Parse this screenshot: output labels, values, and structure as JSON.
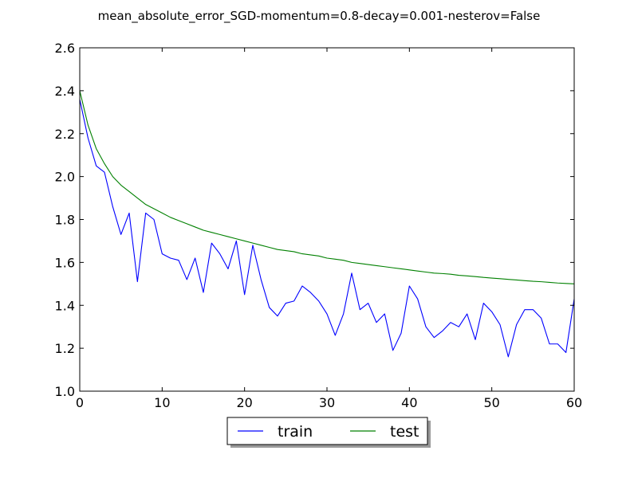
{
  "chart_data": {
    "type": "line",
    "title": "mean_absolute_error_SGD-momentum=0.8-decay=0.001-nesterov=False",
    "xlabel": "",
    "ylabel": "",
    "xlim": [
      0,
      60
    ],
    "ylim": [
      1.0,
      2.6
    ],
    "xticks": [
      0,
      10,
      20,
      30,
      40,
      50,
      60
    ],
    "yticks": [
      1.0,
      1.2,
      1.4,
      1.6,
      1.8,
      2.0,
      2.2,
      2.4,
      2.6
    ],
    "xtick_labels": [
      "0",
      "10",
      "20",
      "30",
      "40",
      "50",
      "60"
    ],
    "ytick_labels": [
      "1.0",
      "1.2",
      "1.4",
      "1.6",
      "1.8",
      "2.0",
      "2.2",
      "2.4",
      "2.6"
    ],
    "grid": false,
    "legend": {
      "placement": "bottom-center-outside",
      "columns": 2
    },
    "series": [
      {
        "name": "train",
        "color": "#0000ff",
        "x": [
          0,
          1,
          2,
          3,
          4,
          5,
          6,
          7,
          8,
          9,
          10,
          11,
          12,
          13,
          14,
          15,
          16,
          17,
          18,
          19,
          20,
          21,
          22,
          23,
          24,
          25,
          26,
          27,
          28,
          29,
          30,
          31,
          32,
          33,
          34,
          35,
          36,
          37,
          38,
          39,
          40,
          41,
          42,
          43,
          44,
          45,
          46,
          47,
          48,
          49,
          50,
          51,
          52,
          53,
          54,
          55,
          56,
          57,
          58,
          59,
          60
        ],
        "y": [
          2.36,
          2.18,
          2.05,
          2.02,
          1.86,
          1.73,
          1.83,
          1.51,
          1.83,
          1.8,
          1.64,
          1.62,
          1.61,
          1.52,
          1.62,
          1.46,
          1.69,
          1.64,
          1.57,
          1.7,
          1.45,
          1.68,
          1.52,
          1.39,
          1.35,
          1.41,
          1.42,
          1.49,
          1.46,
          1.42,
          1.36,
          1.26,
          1.36,
          1.55,
          1.38,
          1.41,
          1.32,
          1.36,
          1.19,
          1.27,
          1.49,
          1.43,
          1.3,
          1.25,
          1.28,
          1.32,
          1.3,
          1.36,
          1.24,
          1.41,
          1.37,
          1.31,
          1.16,
          1.31,
          1.38,
          1.38,
          1.34,
          1.22,
          1.22,
          1.18,
          1.43
        ]
      },
      {
        "name": "test",
        "color": "#008000",
        "x": [
          0,
          1,
          2,
          3,
          4,
          5,
          6,
          7,
          8,
          9,
          10,
          11,
          12,
          13,
          14,
          15,
          16,
          17,
          18,
          19,
          20,
          21,
          22,
          23,
          24,
          25,
          26,
          27,
          28,
          29,
          30,
          31,
          32,
          33,
          34,
          35,
          36,
          37,
          38,
          39,
          40,
          41,
          42,
          43,
          44,
          45,
          46,
          47,
          48,
          49,
          50,
          51,
          52,
          53,
          54,
          55,
          56,
          57,
          58,
          59,
          60
        ],
        "y": [
          2.4,
          2.24,
          2.13,
          2.06,
          2.0,
          1.96,
          1.93,
          1.9,
          1.87,
          1.85,
          1.83,
          1.81,
          1.795,
          1.78,
          1.765,
          1.75,
          1.74,
          1.73,
          1.72,
          1.71,
          1.7,
          1.69,
          1.68,
          1.67,
          1.66,
          1.655,
          1.65,
          1.64,
          1.635,
          1.63,
          1.62,
          1.615,
          1.61,
          1.6,
          1.595,
          1.59,
          1.585,
          1.58,
          1.575,
          1.57,
          1.565,
          1.56,
          1.555,
          1.55,
          1.548,
          1.545,
          1.54,
          1.537,
          1.534,
          1.53,
          1.527,
          1.524,
          1.521,
          1.518,
          1.515,
          1.512,
          1.51,
          1.507,
          1.504,
          1.502,
          1.5
        ]
      }
    ]
  }
}
